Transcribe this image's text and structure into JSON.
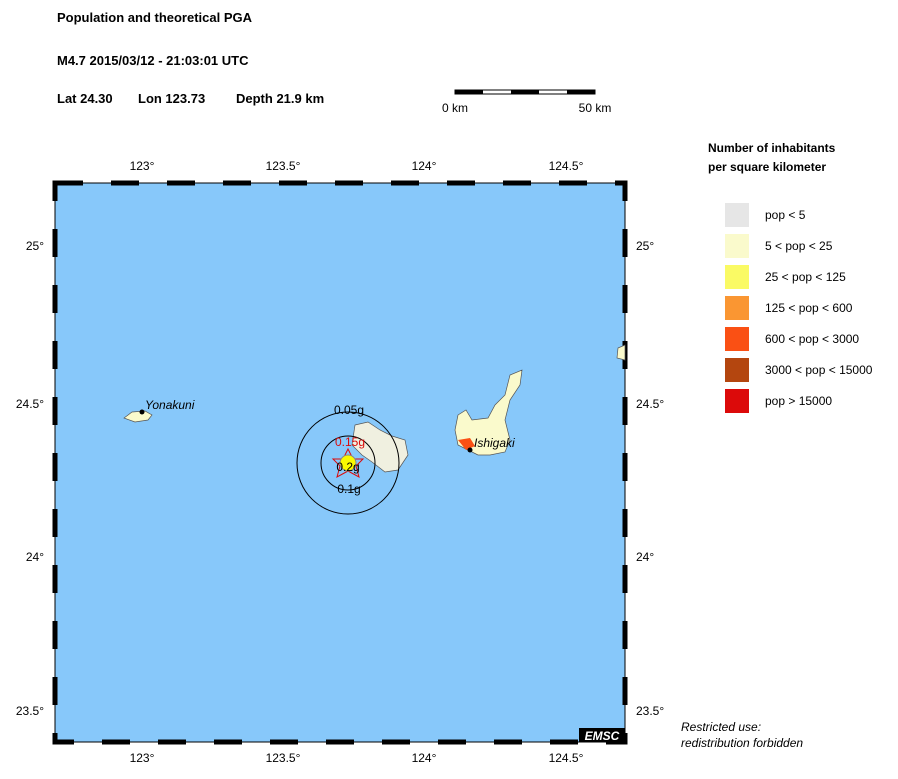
{
  "header": {
    "title": "Population and theoretical PGA",
    "event": "M4.7  2015/03/12 - 21:03:01 UTC",
    "lat": "Lat 24.30",
    "lon": "Lon 123.73",
    "depth": "Depth  21.9 km"
  },
  "scale_bar": {
    "start": "0 km",
    "end": "50 km"
  },
  "map": {
    "x_labels": [
      "123°",
      "123.5°",
      "124°",
      "124.5°"
    ],
    "y_labels": [
      "25°",
      "24.5°",
      "24°",
      "23.5°"
    ],
    "places": [
      "Yonakuni",
      "Ishigaki"
    ],
    "pga_labels": [
      "0.05g",
      "0.1g",
      "0.15g",
      "0.2g"
    ],
    "credit": "EMSC"
  },
  "legend": {
    "title_lines": [
      "Number of inhabitants",
      "per square kilometer"
    ],
    "items": [
      {
        "label": "pop < 5",
        "color": "#e6e6e6"
      },
      {
        "label": "5 < pop < 25",
        "color": "#fafacc"
      },
      {
        "label": "25 < pop < 125",
        "color": "#fafa64"
      },
      {
        "label": "125 < pop < 600",
        "color": "#fa9632"
      },
      {
        "label": "600 < pop < 3000",
        "color": "#fa5014"
      },
      {
        "label": "3000 < pop < 15000",
        "color": "#b4460f"
      },
      {
        "label": "pop > 15000",
        "color": "#dc0a0a"
      }
    ]
  },
  "notice": [
    "Restricted use:",
    "redistribution forbidden"
  ]
}
